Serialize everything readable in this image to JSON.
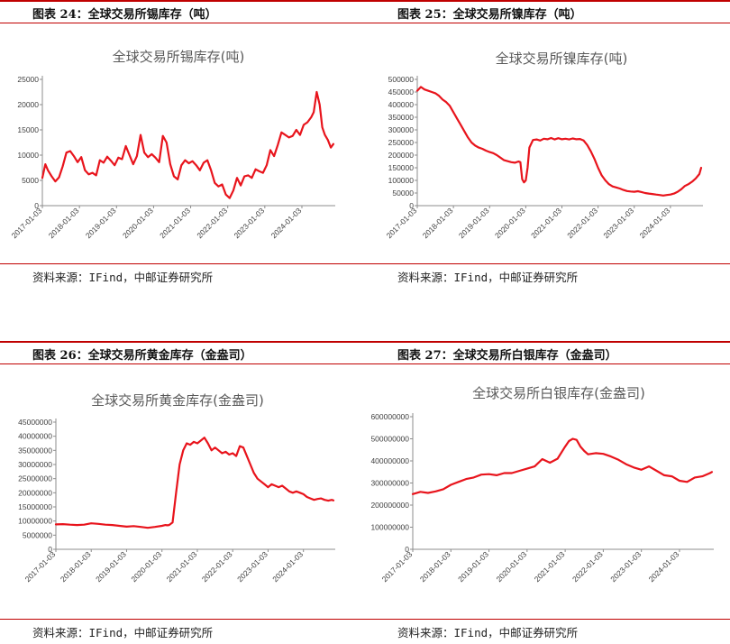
{
  "source_label": "资料来源：IFind，中邮证券研究所",
  "x_ticks": [
    "2017-01-03",
    "2018-01-03",
    "2019-01-03",
    "2020-01-03",
    "2021-01-03",
    "2022-01-03",
    "2023-01-03",
    "2024-01-03"
  ],
  "series_color": "#e8141c",
  "chart_data": [
    {
      "type": "line",
      "header": "图表 24：全球交易所锡库存（吨）",
      "title": "全球交易所锡库存(吨)",
      "xlabel": "",
      "ylabel": "",
      "ylim": [
        0,
        25000
      ],
      "yticks": [
        0,
        5000,
        10000,
        15000,
        20000,
        25000
      ],
      "xlim": [
        2017.0,
        2024.9
      ],
      "series": [
        {
          "x": [
            2017.0,
            2017.08,
            2017.15,
            2017.25,
            2017.35,
            2017.45,
            2017.55,
            2017.65,
            2017.75,
            2017.85,
            2017.95,
            2018.05,
            2018.15,
            2018.25,
            2018.35,
            2018.45,
            2018.55,
            2018.65,
            2018.75,
            2018.85,
            2018.95,
            2019.05,
            2019.15,
            2019.25,
            2019.35,
            2019.45,
            2019.55,
            2019.65,
            2019.75,
            2019.85,
            2019.95,
            2020.05,
            2020.15,
            2020.25,
            2020.35,
            2020.45,
            2020.55,
            2020.65,
            2020.75,
            2020.85,
            2020.95,
            2021.05,
            2021.15,
            2021.25,
            2021.35,
            2021.45,
            2021.55,
            2021.65,
            2021.75,
            2021.85,
            2021.95,
            2022.05,
            2022.15,
            2022.25,
            2022.35,
            2022.45,
            2022.55,
            2022.65,
            2022.75,
            2022.85,
            2022.95,
            2023.05,
            2023.15,
            2023.25,
            2023.35,
            2023.45,
            2023.55,
            2023.65,
            2023.75,
            2023.85,
            2023.95,
            2024.05,
            2024.15,
            2024.25,
            2024.32,
            2024.4,
            2024.48,
            2024.55,
            2024.62,
            2024.7,
            2024.78,
            2024.85
          ],
          "y": [
            5500,
            8200,
            7000,
            5800,
            4800,
            5600,
            7800,
            10500,
            10800,
            9800,
            8600,
            9600,
            7000,
            6200,
            6500,
            6000,
            9000,
            8500,
            9700,
            8900,
            8000,
            9500,
            9200,
            11800,
            10000,
            8200,
            9800,
            14000,
            10500,
            9600,
            10200,
            9500,
            8600,
            13800,
            12500,
            8200,
            5800,
            5200,
            8000,
            9000,
            8400,
            8800,
            8000,
            7000,
            8500,
            9000,
            7000,
            4500,
            3800,
            4200,
            2200,
            1500,
            3000,
            5500,
            4000,
            5800,
            6000,
            5500,
            7200,
            6800,
            6500,
            8000,
            11000,
            9800,
            12000,
            14500,
            14000,
            13500,
            13800,
            15000,
            14000,
            16000,
            16500,
            17500,
            18500,
            22500,
            20000,
            15500,
            14000,
            13000,
            11500,
            12200
          ]
        }
      ]
    },
    {
      "type": "line",
      "header": "图表 25：全球交易所镍库存（吨）",
      "title": "全球交易所镍库存(吨)",
      "xlabel": "",
      "ylabel": "",
      "ylim": [
        0,
        500000
      ],
      "yticks": [
        0,
        50000,
        100000,
        150000,
        200000,
        250000,
        300000,
        350000,
        400000,
        450000,
        500000
      ],
      "xlim": [
        2017.0,
        2024.9
      ],
      "series": [
        {
          "x": [
            2017.0,
            2017.1,
            2017.2,
            2017.3,
            2017.4,
            2017.5,
            2017.6,
            2017.7,
            2017.8,
            2017.9,
            2018.0,
            2018.1,
            2018.2,
            2018.3,
            2018.4,
            2018.5,
            2018.6,
            2018.7,
            2018.8,
            2018.9,
            2019.0,
            2019.1,
            2019.2,
            2019.3,
            2019.4,
            2019.5,
            2019.6,
            2019.7,
            2019.8,
            2019.85,
            2019.9,
            2019.95,
            2020.0,
            2020.05,
            2020.1,
            2020.2,
            2020.3,
            2020.4,
            2020.5,
            2020.6,
            2020.7,
            2020.8,
            2020.9,
            2021.0,
            2021.1,
            2021.2,
            2021.3,
            2021.4,
            2021.5,
            2021.6,
            2021.7,
            2021.8,
            2021.9,
            2022.0,
            2022.1,
            2022.2,
            2022.3,
            2022.4,
            2022.5,
            2022.6,
            2022.7,
            2022.8,
            2022.9,
            2023.0,
            2023.1,
            2023.2,
            2023.3,
            2023.4,
            2023.5,
            2023.6,
            2023.7,
            2023.8,
            2023.9,
            2024.0,
            2024.1,
            2024.2,
            2024.3,
            2024.4,
            2024.5,
            2024.6,
            2024.7,
            2024.8,
            2024.85
          ],
          "y": [
            455000,
            470000,
            460000,
            455000,
            450000,
            445000,
            435000,
            420000,
            410000,
            395000,
            370000,
            345000,
            320000,
            295000,
            270000,
            250000,
            238000,
            230000,
            225000,
            218000,
            212000,
            208000,
            200000,
            190000,
            180000,
            176000,
            172000,
            170000,
            175000,
            172000,
            105000,
            92000,
            100000,
            150000,
            230000,
            260000,
            262000,
            258000,
            265000,
            263000,
            268000,
            262000,
            267000,
            263000,
            265000,
            262000,
            266000,
            263000,
            264000,
            258000,
            240000,
            215000,
            185000,
            150000,
            120000,
            100000,
            85000,
            76000,
            72000,
            68000,
            62000,
            58000,
            56000,
            55000,
            57000,
            54000,
            50000,
            48000,
            46000,
            44000,
            42000,
            40000,
            42000,
            44000,
            48000,
            55000,
            65000,
            78000,
            85000,
            95000,
            108000,
            125000,
            150000
          ]
        }
      ]
    },
    {
      "type": "line",
      "header": "图表 26：全球交易所黄金库存（金盎司）",
      "title": "全球交易所黄金库存(金盎司)",
      "xlabel": "",
      "ylabel": "",
      "ylim": [
        0,
        45000000
      ],
      "yticks": [
        0,
        5000000,
        10000000,
        15000000,
        20000000,
        25000000,
        30000000,
        35000000,
        40000000,
        45000000
      ],
      "xlim": [
        2017.0,
        2024.9
      ],
      "series": [
        {
          "x": [
            2017.0,
            2017.2,
            2017.4,
            2017.6,
            2017.8,
            2018.0,
            2018.2,
            2018.4,
            2018.6,
            2018.8,
            2019.0,
            2019.2,
            2019.4,
            2019.6,
            2019.8,
            2020.0,
            2020.1,
            2020.15,
            2020.2,
            2020.3,
            2020.4,
            2020.5,
            2020.6,
            2020.7,
            2020.8,
            2020.9,
            2021.0,
            2021.1,
            2021.2,
            2021.3,
            2021.4,
            2021.5,
            2021.6,
            2021.7,
            2021.8,
            2021.9,
            2022.0,
            2022.1,
            2022.2,
            2022.3,
            2022.4,
            2022.5,
            2022.6,
            2022.7,
            2022.8,
            2022.9,
            2023.0,
            2023.1,
            2023.2,
            2023.3,
            2023.4,
            2023.5,
            2023.6,
            2023.7,
            2023.8,
            2023.9,
            2024.0,
            2024.1,
            2024.2,
            2024.3,
            2024.4,
            2024.5,
            2024.6,
            2024.7,
            2024.8,
            2024.85
          ],
          "y": [
            8800000,
            8900000,
            8700000,
            8600000,
            8700000,
            9200000,
            9000000,
            8700000,
            8600000,
            8300000,
            8000000,
            8200000,
            7900000,
            7600000,
            7900000,
            8300000,
            8600000,
            8500000,
            8600000,
            9500000,
            20000000,
            30000000,
            35000000,
            37500000,
            37000000,
            38000000,
            37500000,
            38500000,
            39500000,
            37500000,
            35000000,
            36000000,
            35000000,
            34000000,
            34500000,
            33500000,
            34000000,
            33000000,
            36500000,
            36000000,
            33000000,
            30000000,
            27000000,
            25000000,
            24000000,
            23000000,
            22000000,
            23000000,
            22500000,
            22000000,
            22500000,
            21500000,
            20500000,
            20000000,
            20500000,
            20000000,
            19500000,
            18500000,
            18000000,
            17500000,
            17800000,
            18000000,
            17500000,
            17200000,
            17500000,
            17300000
          ]
        }
      ]
    },
    {
      "type": "line",
      "header": "图表 27：全球交易所白银库存（金盎司）",
      "title": "全球交易所白银库存(金盎司)",
      "xlabel": "",
      "ylabel": "",
      "ylim": [
        0,
        600000000
      ],
      "yticks": [
        0,
        100000000,
        200000000,
        300000000,
        400000000,
        500000000,
        600000000
      ],
      "xlim": [
        2017.0,
        2024.9
      ],
      "series": [
        {
          "x": [
            2017.0,
            2017.2,
            2017.4,
            2017.6,
            2017.8,
            2018.0,
            2018.2,
            2018.4,
            2018.6,
            2018.8,
            2019.0,
            2019.2,
            2019.4,
            2019.6,
            2019.8,
            2020.0,
            2020.2,
            2020.4,
            2020.6,
            2020.8,
            2021.0,
            2021.1,
            2021.2,
            2021.3,
            2021.4,
            2021.5,
            2021.6,
            2021.8,
            2022.0,
            2022.2,
            2022.4,
            2022.6,
            2022.8,
            2023.0,
            2023.2,
            2023.4,
            2023.6,
            2023.8,
            2024.0,
            2024.2,
            2024.4,
            2024.6,
            2024.8,
            2024.85
          ],
          "y": [
            250000000,
            260000000,
            255000000,
            262000000,
            272000000,
            292000000,
            305000000,
            318000000,
            325000000,
            338000000,
            340000000,
            335000000,
            345000000,
            345000000,
            355000000,
            365000000,
            375000000,
            408000000,
            392000000,
            410000000,
            465000000,
            490000000,
            500000000,
            495000000,
            465000000,
            445000000,
            430000000,
            435000000,
            432000000,
            420000000,
            405000000,
            385000000,
            370000000,
            360000000,
            375000000,
            355000000,
            335000000,
            330000000,
            310000000,
            305000000,
            325000000,
            330000000,
            345000000,
            350000000
          ]
        }
      ]
    }
  ]
}
